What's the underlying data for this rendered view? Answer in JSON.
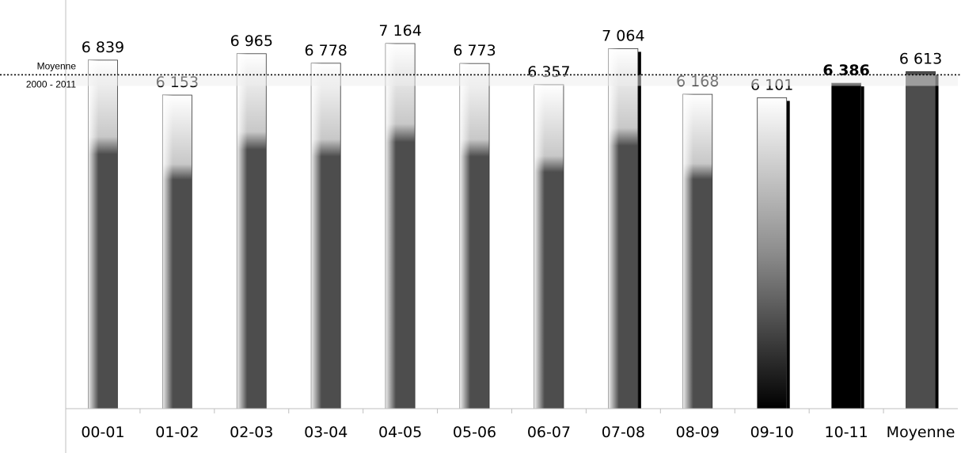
{
  "chart_data": {
    "type": "bar",
    "categories": [
      "00-01",
      "01-02",
      "02-03",
      "03-04",
      "04-05",
      "05-06",
      "06-07",
      "07-08",
      "08-09",
      "09-10",
      "10-11",
      "Moyenne"
    ],
    "values": [
      6839,
      6153,
      6965,
      6778,
      7164,
      6773,
      6357,
      7064,
      6168,
      6101,
      6386,
      6613
    ],
    "value_labels": [
      "6 839",
      "6 153",
      "6 965",
      "6 778",
      "7 164",
      "6 773",
      "6 357",
      "7 064",
      "6 168",
      "6 101",
      "6 386",
      "6 613"
    ],
    "styles": [
      "gradient-gray",
      "gradient-gray",
      "gradient-gray",
      "gradient-gray",
      "gradient-gray",
      "gradient-gray",
      "gradient-gray",
      "gradient-gray-shadow",
      "gradient-gray",
      "gradient-black-shadow",
      "solid-black",
      "solid-gray"
    ],
    "bold_labels": [
      false,
      false,
      false,
      false,
      false,
      false,
      false,
      false,
      false,
      false,
      true,
      false
    ],
    "reference_line": {
      "value": 6613,
      "label_line1": "Moyenne",
      "label_line2": "2000 - 2011"
    },
    "ylim": [
      0,
      7700
    ],
    "title": "",
    "xlabel": "",
    "ylabel": "",
    "grid": false,
    "colors": {
      "dark_gray": "#4d4d4d",
      "black": "#000000",
      "light": "#ffffff",
      "axis": "#bfbfbf"
    }
  }
}
